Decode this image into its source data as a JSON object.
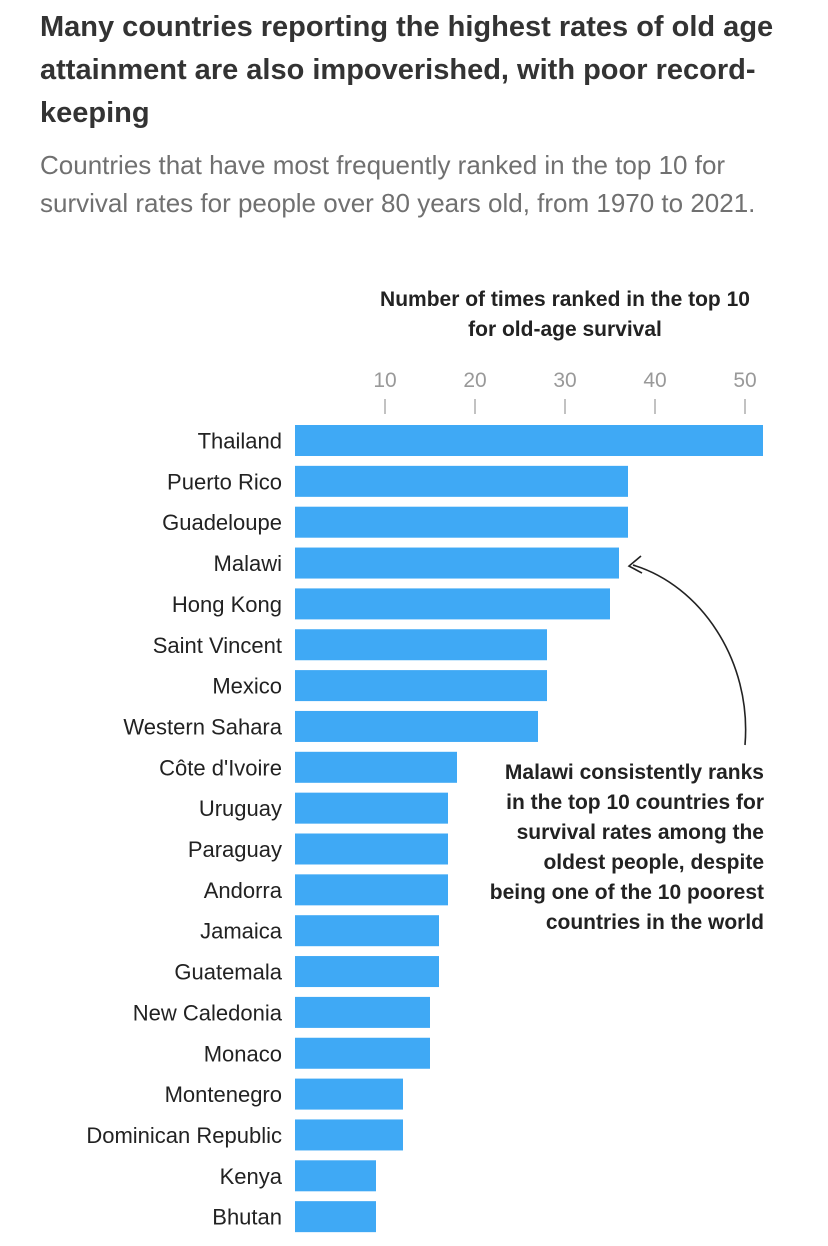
{
  "header": {
    "title": "Many countries reporting the highest rates of old age attainment are also impoverished, with poor record-keeping",
    "subtitle": "Countries that have most frequently ranked in the top 10 for survival rates for people over 80 years old, from 1970 to 2021."
  },
  "chart_data": {
    "type": "bar",
    "orientation": "horizontal",
    "xlabel": "Number of times ranked in the top 10 for old-age survival",
    "ticks": [
      10,
      20,
      30,
      40,
      50
    ],
    "xlim": [
      0,
      52
    ],
    "categories": [
      "Thailand",
      "Puerto Rico",
      "Guadeloupe",
      "Malawi",
      "Hong Kong",
      "Saint Vincent",
      "Mexico",
      "Western Sahara",
      "Côte d'Ivoire",
      "Uruguay",
      "Paraguay",
      "Andorra",
      "Jamaica",
      "Guatemala",
      "New Caledonia",
      "Monaco",
      "Montenegro",
      "Dominican Republic",
      "Kenya",
      "Bhutan"
    ],
    "values": [
      52,
      37,
      37,
      36,
      35,
      28,
      28,
      27,
      18,
      17,
      17,
      17,
      16,
      16,
      15,
      15,
      12,
      12,
      9,
      9
    ],
    "bar_color": "#3fa9f5",
    "annotation": {
      "target": "Malawi",
      "text": "Malawi consistently ranks\nin the top 10 countries for\nsurvival rates among the\noldest people, despite\nbeing one of the 10 poorest\ncountries in the world"
    }
  }
}
